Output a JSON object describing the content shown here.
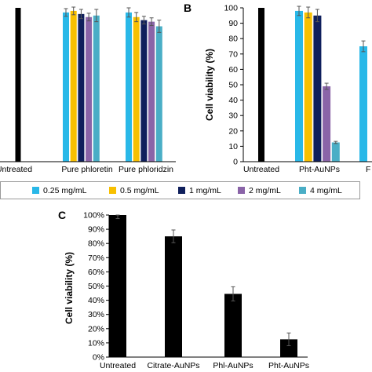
{
  "colors": {
    "series": [
      "#29b8e8",
      "#f8c000",
      "#0f1f5c",
      "#8a64a8",
      "#4aaec6"
    ],
    "untreated": "#000000"
  },
  "legend": {
    "placement": "between-panels",
    "entries": [
      "0.25 mg/mL",
      "0.5 mg/mL",
      "1 mg/mL",
      "2 mg/mL",
      "4 mg/mL"
    ]
  },
  "chart_data": [
    {
      "panel": "A",
      "type": "bar",
      "panel_letter": "",
      "ylabel": "",
      "ylim": [
        0,
        100
      ],
      "categories": [
        "Untreated",
        "Pure phloretin",
        "Pure phloridzin"
      ],
      "untreated": {
        "value": 100,
        "error": 1.5
      },
      "series": [
        {
          "name": "0.25 mg/mL",
          "values": [
            null,
            97,
            97
          ],
          "errors": [
            null,
            2.5,
            3
          ]
        },
        {
          "name": "0.5 mg/mL",
          "values": [
            null,
            98,
            94
          ],
          "errors": [
            null,
            2.5,
            3
          ]
        },
        {
          "name": "1 mg/mL",
          "values": [
            null,
            96,
            92
          ],
          "errors": [
            null,
            3,
            2.5
          ]
        },
        {
          "name": "2 mg/mL",
          "values": [
            null,
            94,
            91
          ],
          "errors": [
            null,
            2.5,
            2.5
          ]
        },
        {
          "name": "4 mg/mL",
          "values": [
            null,
            95,
            88
          ],
          "errors": [
            null,
            4,
            4
          ]
        }
      ]
    },
    {
      "panel": "B",
      "type": "bar",
      "panel_letter": "B",
      "ylabel": "Cell viability (%)",
      "ylim": [
        0,
        100
      ],
      "yticks": [
        0,
        10,
        20,
        30,
        40,
        50,
        60,
        70,
        80,
        90,
        100
      ],
      "categories": [
        "Untreated",
        "Pht-AuNPs",
        "F"
      ],
      "untreated": {
        "value": 100,
        "error": 1.5
      },
      "series": [
        {
          "name": "0.25 mg/mL",
          "values": [
            null,
            98,
            75
          ],
          "errors": [
            null,
            3,
            3.5
          ]
        },
        {
          "name": "0.5 mg/mL",
          "values": [
            null,
            97,
            null
          ],
          "errors": [
            null,
            3.5,
            null
          ]
        },
        {
          "name": "1 mg/mL",
          "values": [
            null,
            95,
            null
          ],
          "errors": [
            null,
            4,
            null
          ]
        },
        {
          "name": "2 mg/mL",
          "values": [
            null,
            49,
            null
          ],
          "errors": [
            null,
            2,
            null
          ]
        },
        {
          "name": "4 mg/mL",
          "values": [
            null,
            12.5,
            null
          ],
          "errors": [
            null,
            0.7,
            null
          ]
        }
      ]
    },
    {
      "panel": "C",
      "type": "bar",
      "panel_letter": "C",
      "ylabel": "Cell viability (%)",
      "ylim": [
        0,
        100
      ],
      "yticks": [
        0,
        10,
        20,
        30,
        40,
        50,
        60,
        70,
        80,
        90,
        100
      ],
      "ytick_format": "percent",
      "categories": [
        "Untreated",
        "Citrate-AuNPs",
        "Phl-AuNPs",
        "Pht-AuNPs"
      ],
      "values": [
        100,
        85,
        44.5,
        12.5
      ],
      "errors": [
        2.5,
        4.5,
        5,
        4.5
      ]
    }
  ]
}
